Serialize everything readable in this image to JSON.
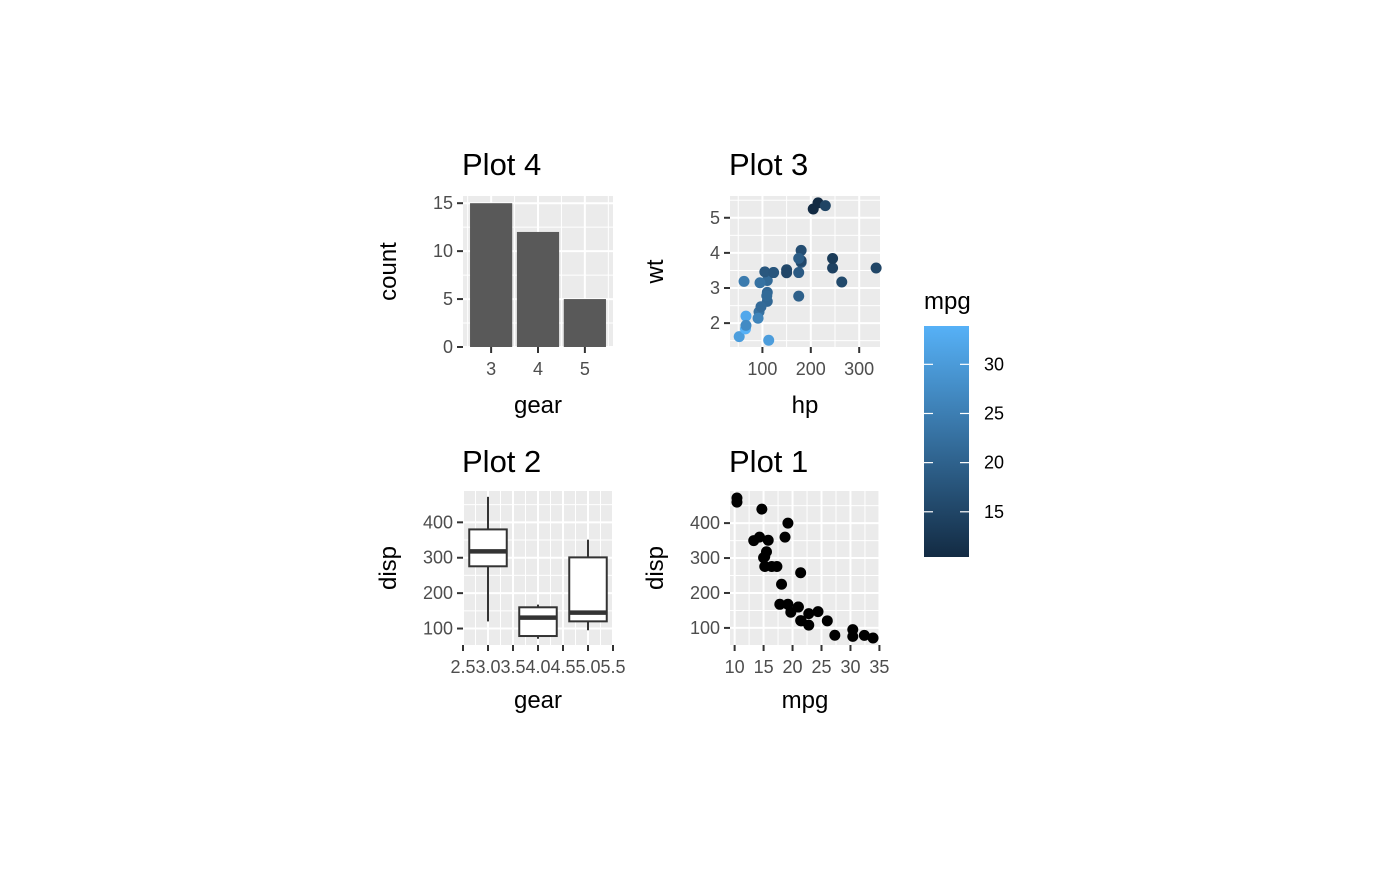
{
  "colors": {
    "panel_background": "#ebebeb",
    "grid_major": "#ffffff",
    "bar_fill": "#595959",
    "box_line": "#333333",
    "point": "#000000",
    "gradient_low": "#132b43",
    "gradient_high": "#56b1f7"
  },
  "legend": {
    "title": "mpg",
    "type": "colorbar",
    "range": [
      10.4,
      33.9
    ],
    "breaks": [
      15,
      20,
      25,
      30
    ],
    "labels": [
      "15",
      "20",
      "25",
      "30"
    ]
  },
  "chart_data": [
    {
      "id": "plot4",
      "type": "bar",
      "title": "Plot 4",
      "xlabel": "gear",
      "ylabel": "count",
      "categories": [
        "3",
        "4",
        "5"
      ],
      "values": [
        15,
        12,
        5
      ],
      "x_breaks": [
        3,
        4,
        5
      ],
      "x_tick_labels": [
        "3",
        "4",
        "5"
      ],
      "xlim": [
        2.4,
        5.6
      ],
      "ylim": [
        0,
        15.75
      ],
      "y_breaks": [
        0,
        5,
        10,
        15
      ],
      "y_tick_labels": [
        "0",
        "5",
        "10",
        "15"
      ],
      "grid": true
    },
    {
      "id": "plot3",
      "type": "scatter",
      "title": "Plot 3",
      "xlabel": "hp",
      "ylabel": "wt",
      "color_by": "mpg",
      "xlim": [
        33,
        343
      ],
      "ylim": [
        1.32,
        5.62
      ],
      "x_breaks": [
        100,
        200,
        300
      ],
      "x_tick_labels": [
        "100",
        "200",
        "300"
      ],
      "y_breaks": [
        2,
        3,
        4,
        5
      ],
      "y_tick_labels": [
        "2",
        "3",
        "4",
        "5"
      ],
      "grid": true,
      "points": [
        {
          "x": 110,
          "y": 2.62,
          "c": 21.0
        },
        {
          "x": 110,
          "y": 2.875,
          "c": 21.0
        },
        {
          "x": 93,
          "y": 2.32,
          "c": 22.8
        },
        {
          "x": 110,
          "y": 3.215,
          "c": 21.4
        },
        {
          "x": 175,
          "y": 3.44,
          "c": 18.7
        },
        {
          "x": 105,
          "y": 3.46,
          "c": 18.1
        },
        {
          "x": 245,
          "y": 3.57,
          "c": 14.3
        },
        {
          "x": 62,
          "y": 3.19,
          "c": 24.4
        },
        {
          "x": 95,
          "y": 3.15,
          "c": 22.8
        },
        {
          "x": 123,
          "y": 3.44,
          "c": 19.2
        },
        {
          "x": 123,
          "y": 3.44,
          "c": 17.8
        },
        {
          "x": 180,
          "y": 4.07,
          "c": 16.4
        },
        {
          "x": 180,
          "y": 3.73,
          "c": 17.3
        },
        {
          "x": 180,
          "y": 3.78,
          "c": 15.2
        },
        {
          "x": 205,
          "y": 5.25,
          "c": 10.4
        },
        {
          "x": 215,
          "y": 5.424,
          "c": 10.4
        },
        {
          "x": 230,
          "y": 5.345,
          "c": 14.7
        },
        {
          "x": 66,
          "y": 2.2,
          "c": 32.4
        },
        {
          "x": 52,
          "y": 1.615,
          "c": 30.4
        },
        {
          "x": 65,
          "y": 1.835,
          "c": 33.9
        },
        {
          "x": 97,
          "y": 2.465,
          "c": 21.5
        },
        {
          "x": 150,
          "y": 3.52,
          "c": 15.5
        },
        {
          "x": 150,
          "y": 3.435,
          "c": 15.2
        },
        {
          "x": 245,
          "y": 3.84,
          "c": 13.3
        },
        {
          "x": 175,
          "y": 3.845,
          "c": 19.2
        },
        {
          "x": 66,
          "y": 1.935,
          "c": 27.3
        },
        {
          "x": 91,
          "y": 2.14,
          "c": 26.0
        },
        {
          "x": 113,
          "y": 1.513,
          "c": 30.4
        },
        {
          "x": 264,
          "y": 3.17,
          "c": 15.8
        },
        {
          "x": 175,
          "y": 2.77,
          "c": 19.7
        },
        {
          "x": 335,
          "y": 3.57,
          "c": 15.0
        },
        {
          "x": 109,
          "y": 2.78,
          "c": 21.4
        }
      ]
    },
    {
      "id": "plot2",
      "type": "boxplot",
      "title": "Plot 2",
      "xlabel": "gear",
      "ylabel": "disp",
      "xlim": [
        2.5,
        5.5
      ],
      "ylim": [
        53.5,
        488.5
      ],
      "x_breaks": [
        2.5,
        3.0,
        3.5,
        4.0,
        4.5,
        5.0,
        5.5
      ],
      "x_tick_labels": [
        "2.5",
        "3.0",
        "3.5",
        "4.0",
        "4.5",
        "5.0",
        "5.5"
      ],
      "y_breaks": [
        100,
        200,
        300,
        400
      ],
      "y_tick_labels": [
        "100",
        "200",
        "300",
        "400"
      ],
      "grid": true,
      "boxes": [
        {
          "x": 3,
          "min": 120.1,
          "q1": 275.8,
          "median": 318,
          "q3": 380,
          "max": 472
        },
        {
          "x": 4,
          "min": 71.1,
          "q1": 78.85,
          "median": 130.9,
          "q3": 160,
          "max": 167.6
        },
        {
          "x": 5,
          "min": 95.1,
          "q1": 120.3,
          "median": 145,
          "q3": 301,
          "max": 351
        }
      ]
    },
    {
      "id": "plot1",
      "type": "scatter",
      "title": "Plot 1",
      "xlabel": "mpg",
      "ylabel": "disp",
      "xlim": [
        9.2,
        35.1
      ],
      "ylim": [
        51.1,
        491.9
      ],
      "x_breaks": [
        10,
        15,
        20,
        25,
        30,
        35
      ],
      "x_tick_labels": [
        "10",
        "15",
        "20",
        "25",
        "30",
        "35"
      ],
      "y_breaks": [
        100,
        200,
        300,
        400
      ],
      "y_tick_labels": [
        "100",
        "200",
        "300",
        "400"
      ],
      "grid": true,
      "points": [
        {
          "x": 21.0,
          "y": 160
        },
        {
          "x": 21.0,
          "y": 160
        },
        {
          "x": 22.8,
          "y": 108
        },
        {
          "x": 21.4,
          "y": 258
        },
        {
          "x": 18.7,
          "y": 360
        },
        {
          "x": 18.1,
          "y": 225
        },
        {
          "x": 14.3,
          "y": 360
        },
        {
          "x": 24.4,
          "y": 146.7
        },
        {
          "x": 22.8,
          "y": 140.8
        },
        {
          "x": 19.2,
          "y": 167.6
        },
        {
          "x": 17.8,
          "y": 167.6
        },
        {
          "x": 16.4,
          "y": 275.8
        },
        {
          "x": 17.3,
          "y": 275.8
        },
        {
          "x": 15.2,
          "y": 275.8
        },
        {
          "x": 10.4,
          "y": 472
        },
        {
          "x": 10.4,
          "y": 460
        },
        {
          "x": 14.7,
          "y": 440
        },
        {
          "x": 32.4,
          "y": 78.7
        },
        {
          "x": 30.4,
          "y": 75.7
        },
        {
          "x": 33.9,
          "y": 71.1
        },
        {
          "x": 21.5,
          "y": 120.1
        },
        {
          "x": 15.5,
          "y": 318
        },
        {
          "x": 15.2,
          "y": 304
        },
        {
          "x": 13.3,
          "y": 350
        },
        {
          "x": 19.2,
          "y": 400
        },
        {
          "x": 27.3,
          "y": 79
        },
        {
          "x": 26.0,
          "y": 120.3
        },
        {
          "x": 30.4,
          "y": 95.1
        },
        {
          "x": 15.8,
          "y": 351
        },
        {
          "x": 19.7,
          "y": 145
        },
        {
          "x": 15.0,
          "y": 301
        },
        {
          "x": 21.4,
          "y": 121
        }
      ]
    }
  ]
}
